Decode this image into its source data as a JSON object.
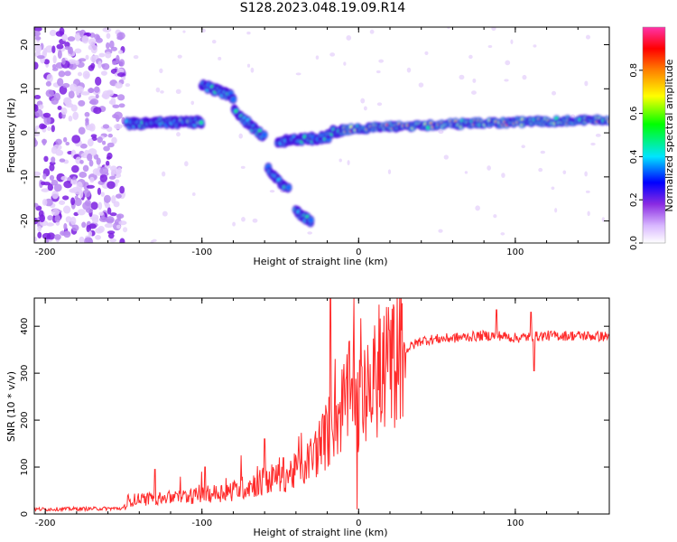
{
  "title": "S128.2023.048.19.09.R14",
  "chart_data": [
    {
      "type": "heatmap",
      "xlabel": "Height of straight line (km)",
      "ylabel": "Frequency (Hz)",
      "xlim": [
        -207,
        160
      ],
      "ylim": [
        -25,
        24
      ],
      "x_ticks": [
        -200,
        -100,
        0,
        100
      ],
      "y_ticks": [
        -20,
        -10,
        0,
        10,
        20
      ],
      "colorbar": {
        "label": "Normalized spectral amplitude",
        "range": [
          0,
          1
        ],
        "ticks": [
          "0.0",
          "0.2",
          "0.4",
          "0.6",
          "0.8"
        ],
        "colors": [
          "#ffffff",
          "#d9b8ff",
          "#8a2be2",
          "#0000ff",
          "#00e5ff",
          "#00ff00",
          "#ffff00",
          "#ff8000",
          "#ff0000",
          "#ff33aa"
        ]
      },
      "ridge": {
        "description_free": true,
        "segments": [
          {
            "x": [
              -148,
              -100
            ],
            "y": [
              2,
              2.5
            ]
          },
          {
            "x": [
              -100,
              -80
            ],
            "y": [
              11,
              8
            ]
          },
          {
            "x": [
              -80,
              -60
            ],
            "y": [
              5,
              -1
            ]
          },
          {
            "x": [
              -58,
              -45
            ],
            "y": [
              -8,
              -13
            ]
          },
          {
            "x": [
              -40,
              -30
            ],
            "y": [
              -18,
              -20
            ]
          },
          {
            "x": [
              -52,
              -20
            ],
            "y": [
              -2,
              -1
            ]
          },
          {
            "x": [
              -20,
              0
            ],
            "y": [
              0,
              1
            ]
          },
          {
            "x": [
              0,
              60
            ],
            "y": [
              1,
              2
            ]
          },
          {
            "x": [
              60,
              160
            ],
            "y": [
              2,
              3
            ]
          }
        ]
      }
    },
    {
      "type": "line",
      "xlabel": "Height of straight line (km)",
      "ylabel": "SNR (10 * v/v)",
      "xlim": [
        -207,
        160
      ],
      "ylim": [
        0,
        460
      ],
      "x_ticks": [
        -200,
        -100,
        0,
        100
      ],
      "y_ticks": [
        0,
        100,
        200,
        300,
        400
      ],
      "color": "#ff2a2a",
      "profile": {
        "x": [
          -207,
          -150,
          -145,
          -120,
          -100,
          -80,
          -60,
          -40,
          -30,
          -20,
          -10,
          -5,
          0,
          5,
          10,
          20,
          30,
          40,
          60,
          80,
          90,
          100,
          120,
          140,
          160
        ],
        "y": [
          10,
          12,
          30,
          35,
          40,
          50,
          70,
          90,
          120,
          170,
          230,
          260,
          230,
          250,
          280,
          320,
          350,
          370,
          375,
          380,
          380,
          375,
          380,
          380,
          378
        ]
      },
      "spikes": [
        {
          "x": -130,
          "y": 95
        },
        {
          "x": -98,
          "y": 100
        },
        {
          "x": -75,
          "y": 125
        },
        {
          "x": -60,
          "y": 160
        },
        {
          "x": -48,
          "y": 120
        },
        {
          "x": -18,
          "y": 460
        },
        {
          "x": -3,
          "y": 460
        },
        {
          "x": -1,
          "y": 10
        },
        {
          "x": 88,
          "y": 435
        },
        {
          "x": 110,
          "y": 430
        },
        {
          "x": 112,
          "y": 305
        }
      ]
    }
  ]
}
